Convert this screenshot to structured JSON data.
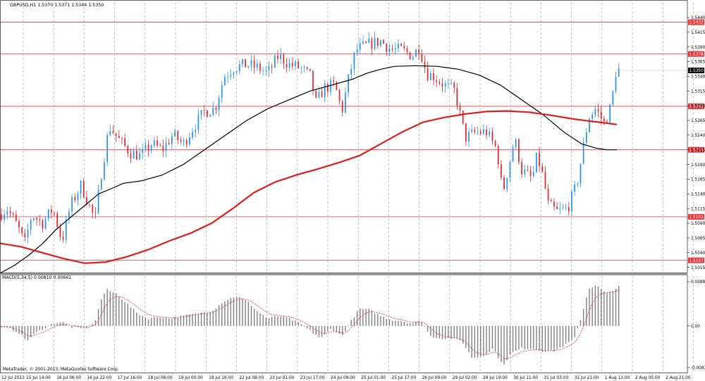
{
  "window": {
    "header": "GBPUSD,H1  1.5370 1.5371 1.5344 1.5350",
    "copyright": "MetaTrader, © 2001-2013, MetaQuotes Software Corp."
  },
  "colors": {
    "background": "#ffffff",
    "grid": "#9a9a9a",
    "candle_up": "#1e90ff",
    "candle_down": "#e0242a",
    "ma_fast": "#000000",
    "ma_slow": "#dc1e1e",
    "level_line": "#e8383c",
    "level_label_bg": "#e8383c",
    "current_price_label_bg": "#000000",
    "macd_hist": "#808080",
    "macd_signal": "#e8383c"
  },
  "chart_data": [
    {
      "type": "candlestick",
      "symbol": "GBPUSD",
      "timeframe": "H1",
      "ohlc_header": {
        "open": 1.537,
        "high": 1.5371,
        "low": 1.5344,
        "close": 1.535
      },
      "price_axis_ticks": [
        1.544,
        1.5415,
        1.539,
        1.5365,
        1.534,
        1.5315,
        1.529,
        1.5265,
        1.524,
        1.5215,
        1.519,
        1.5165,
        1.514,
        1.5115,
        1.509,
        1.5065,
        1.504,
        1.5015
      ],
      "price_axis_labels": [
        "1.5440",
        "1.5415",
        "1.5390",
        "1.5365",
        "1.5340",
        "1.5315",
        "1.5290",
        "1.5265",
        "1.5240",
        "1.5215",
        "1.5190",
        "1.5165",
        "1.5140",
        "1.5115",
        "1.5090",
        "1.5065",
        "1.5040",
        "1.5015"
      ],
      "ylim": [
        1.5005,
        1.5465
      ],
      "horizontal_levels": [
        {
          "value": 1.5432,
          "label": "1.5432"
        },
        {
          "value": 1.5378,
          "label": "1.5378"
        },
        {
          "value": 1.5289,
          "label": "1.5289"
        },
        {
          "value": 1.5215,
          "label": "1.5215"
        },
        {
          "value": 1.5101,
          "label": "1.5101"
        },
        {
          "value": 1.5027,
          "label": "1.5027"
        }
      ],
      "current_price": {
        "value": 1.535,
        "label": "1.5350"
      },
      "time_labels": [
        "12 Jul 2013",
        "15 Jul 14:00",
        "16 Jul 06:00",
        "16 Jul 22:00",
        "17 Jul 16:00",
        "18 Jul 08:00",
        "19 Jul 00:00",
        "19 Jul 16:00",
        "22 Jul 08:00",
        "23 Jul 01:00",
        "23 Jul 17:00",
        "24 Jul 09:00",
        "25 Jul 01:00",
        "25 Jul 17:00",
        "26 Jul 09:00",
        "29 Jul 02:00",
        "29 Jul 19:00",
        "30 Jul 11:00",
        "31 Jul 03:00",
        "31 Jul 21:00",
        "1 Aug 13:00",
        "2 Aug 05:00",
        "2 Aug 21:00"
      ],
      "price_path_anchors": [
        [
          0,
          1.5105
        ],
        [
          10,
          1.5115
        ],
        [
          25,
          1.5085
        ],
        [
          35,
          1.5055
        ],
        [
          45,
          1.5105
        ],
        [
          60,
          1.509
        ],
        [
          75,
          1.5115
        ],
        [
          88,
          1.506
        ],
        [
          100,
          1.512
        ],
        [
          115,
          1.5155
        ],
        [
          135,
          1.5095
        ],
        [
          143,
          1.517
        ],
        [
          155,
          1.5255
        ],
        [
          170,
          1.523
        ],
        [
          185,
          1.521
        ],
        [
          200,
          1.5205
        ],
        [
          215,
          1.5225
        ],
        [
          230,
          1.5215
        ],
        [
          245,
          1.524
        ],
        [
          260,
          1.5225
        ],
        [
          275,
          1.5255
        ],
        [
          290,
          1.528
        ],
        [
          305,
          1.5285
        ],
        [
          318,
          1.534
        ],
        [
          332,
          1.5355
        ],
        [
          350,
          1.536
        ],
        [
          365,
          1.5355
        ],
        [
          380,
          1.5345
        ],
        [
          395,
          1.5375
        ],
        [
          410,
          1.536
        ],
        [
          425,
          1.5355
        ],
        [
          440,
          1.534
        ],
        [
          448,
          1.5295
        ],
        [
          460,
          1.532
        ],
        [
          475,
          1.5325
        ],
        [
          485,
          1.528
        ],
        [
          495,
          1.534
        ],
        [
          505,
          1.5385
        ],
        [
          515,
          1.539
        ],
        [
          525,
          1.5395
        ],
        [
          540,
          1.54
        ],
        [
          555,
          1.5385
        ],
        [
          570,
          1.5385
        ],
        [
          585,
          1.5375
        ],
        [
          595,
          1.539
        ],
        [
          605,
          1.5345
        ],
        [
          615,
          1.534
        ],
        [
          630,
          1.5325
        ],
        [
          645,
          1.5315
        ],
        [
          660,
          1.5235
        ],
        [
          675,
          1.5245
        ],
        [
          690,
          1.5245
        ],
        [
          705,
          1.5215
        ],
        [
          713,
          1.514
        ],
        [
          722,
          1.519
        ],
        [
          730,
          1.5235
        ],
        [
          740,
          1.518
        ],
        [
          755,
          1.5165
        ],
        [
          762,
          1.5205
        ],
        [
          770,
          1.517
        ],
        [
          778,
          1.512
        ],
        [
          790,
          1.511
        ],
        [
          805,
          1.5115
        ],
        [
          818,
          1.5155
        ],
        [
          826,
          1.521
        ],
        [
          835,
          1.527
        ],
        [
          845,
          1.5285
        ],
        [
          857,
          1.526
        ],
        [
          867,
          1.529
        ],
        [
          875,
          1.536
        ],
        [
          878,
          1.535
        ]
      ],
      "series": [
        {
          "kind": "ma_fast",
          "points": [
            [
              0,
              1.5005
            ],
            [
              20,
              1.5018
            ],
            [
              40,
              1.5035
            ],
            [
              60,
              1.5055
            ],
            [
              80,
              1.508
            ],
            [
              100,
              1.51
            ],
            [
              120,
              1.512
            ],
            [
              140,
              1.514
            ],
            [
              160,
              1.515
            ],
            [
              175,
              1.5158
            ],
            [
              200,
              1.5162
            ],
            [
              230,
              1.5172
            ],
            [
              260,
              1.519
            ],
            [
              290,
              1.5215
            ],
            [
              320,
              1.524
            ],
            [
              350,
              1.5265
            ],
            [
              380,
              1.5285
            ],
            [
              410,
              1.53
            ],
            [
              440,
              1.5315
            ],
            [
              470,
              1.5325
            ],
            [
              500,
              1.5335
            ],
            [
              520,
              1.5345
            ],
            [
              540,
              1.5352
            ],
            [
              560,
              1.5357
            ],
            [
              590,
              1.5358
            ],
            [
              620,
              1.5357
            ],
            [
              650,
              1.5352
            ],
            [
              680,
              1.5342
            ],
            [
              710,
              1.5325
            ],
            [
              740,
              1.53
            ],
            [
              770,
              1.5275
            ],
            [
              800,
              1.5245
            ],
            [
              825,
              1.5225
            ],
            [
              845,
              1.5218
            ],
            [
              860,
              1.5215
            ],
            [
              875,
              1.5215
            ]
          ]
        },
        {
          "kind": "ma_slow",
          "points": [
            [
              0,
              1.5056
            ],
            [
              30,
              1.505
            ],
            [
              60,
              1.504
            ],
            [
              90,
              1.503
            ],
            [
              120,
              1.5022
            ],
            [
              150,
              1.5024
            ],
            [
              180,
              1.5033
            ],
            [
              210,
              1.5045
            ],
            [
              240,
              1.506
            ],
            [
              270,
              1.5073
            ],
            [
              300,
              1.509
            ],
            [
              330,
              1.5115
            ],
            [
              360,
              1.5142
            ],
            [
              390,
              1.516
            ],
            [
              420,
              1.5172
            ],
            [
              450,
              1.5182
            ],
            [
              480,
              1.5193
            ],
            [
              510,
              1.5205
            ],
            [
              540,
              1.5225
            ],
            [
              570,
              1.5245
            ],
            [
              600,
              1.5262
            ],
            [
              630,
              1.527
            ],
            [
              660,
              1.5276
            ],
            [
              690,
              1.528
            ],
            [
              720,
              1.5281
            ],
            [
              750,
              1.5279
            ],
            [
              780,
              1.5274
            ],
            [
              810,
              1.5268
            ],
            [
              835,
              1.5264
            ],
            [
              850,
              1.5262
            ],
            [
              875,
              1.5258
            ]
          ]
        }
      ]
    },
    {
      "type": "bar",
      "indicator": "MACD",
      "label": "MACD(5,34,5) 0.00810 0.00661",
      "params": [
        5,
        34,
        5
      ],
      "values_shown": {
        "macd": 0.0081,
        "signal": 0.00661
      },
      "axis_labels": [
        "0.00888",
        "0.00",
        "-0.00836"
      ],
      "ylim": [
        -0.00836,
        0.00888
      ],
      "zero_line": 0.0,
      "macd_anchors": [
        [
          0,
          -0.0004
        ],
        [
          15,
          -0.0005
        ],
        [
          28,
          -0.0015
        ],
        [
          38,
          -0.003
        ],
        [
          50,
          -0.0015
        ],
        [
          62,
          -0.0005
        ],
        [
          75,
          0.0005
        ],
        [
          88,
          0.0008
        ],
        [
          100,
          -0.0002
        ],
        [
          112,
          -0.0005
        ],
        [
          125,
          -0.0003
        ],
        [
          135,
          0.001
        ],
        [
          145,
          0.006
        ],
        [
          152,
          0.0072
        ],
        [
          165,
          0.0065
        ],
        [
          180,
          0.0045
        ],
        [
          195,
          0.0025
        ],
        [
          210,
          0.0015
        ],
        [
          225,
          0.0018
        ],
        [
          240,
          0.0015
        ],
        [
          260,
          0.002
        ],
        [
          280,
          0.0025
        ],
        [
          300,
          0.003
        ],
        [
          318,
          0.005
        ],
        [
          335,
          0.006
        ],
        [
          350,
          0.005
        ],
        [
          365,
          0.003
        ],
        [
          380,
          0.0015
        ],
        [
          395,
          0.002
        ],
        [
          410,
          0.0015
        ],
        [
          425,
          0.0005
        ],
        [
          440,
          -0.001
        ],
        [
          455,
          -0.0025
        ],
        [
          470,
          -0.0005
        ],
        [
          485,
          -0.002
        ],
        [
          498,
          0.001
        ],
        [
          510,
          0.0035
        ],
        [
          525,
          0.0032
        ],
        [
          540,
          0.002
        ],
        [
          555,
          0.0012
        ],
        [
          570,
          0.001
        ],
        [
          585,
          0.0005
        ],
        [
          598,
          0.001
        ],
        [
          610,
          -0.002
        ],
        [
          625,
          -0.0025
        ],
        [
          640,
          -0.0025
        ],
        [
          655,
          -0.003
        ],
        [
          670,
          -0.0065
        ],
        [
          685,
          -0.006
        ],
        [
          700,
          -0.0045
        ],
        [
          713,
          -0.008
        ],
        [
          725,
          -0.0055
        ],
        [
          740,
          -0.0045
        ],
        [
          755,
          -0.0045
        ],
        [
          770,
          -0.005
        ],
        [
          785,
          -0.005
        ],
        [
          800,
          -0.004
        ],
        [
          815,
          -0.0025
        ],
        [
          825,
          0.002
        ],
        [
          835,
          0.0075
        ],
        [
          845,
          0.0082
        ],
        [
          860,
          0.0065
        ],
        [
          870,
          0.007
        ],
        [
          876,
          0.0081
        ]
      ]
    }
  ]
}
